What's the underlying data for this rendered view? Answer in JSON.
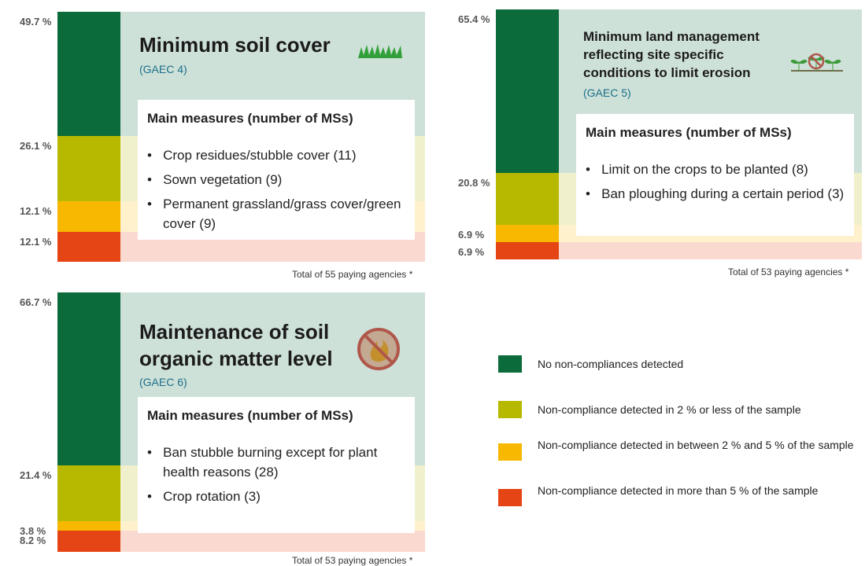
{
  "chart_data": [
    {
      "type": "stacked_bar",
      "title": "Minimum soil cover",
      "subtitle": "(GAEC 4)",
      "measures_title": "Main measures (number of MSs)",
      "measures": [
        "Crop residues/stubble cover (11)",
        "Sown vegetation (9)",
        "Permanent grassland/grass cover/green cover (9)"
      ],
      "values": [
        49.7,
        26.1,
        12.1,
        12.1
      ],
      "value_labels": [
        "49.7 %",
        "26.1 %",
        "12.1 %",
        "12.1 %"
      ],
      "ylim": [
        0,
        100
      ],
      "note": "Total of 55 paying agencies *"
    },
    {
      "type": "stacked_bar",
      "title": "Minimum land management reflecting site specific conditions to limit erosion",
      "subtitle": "(GAEC 5)",
      "measures_title": "Main measures (number of MSs)",
      "measures": [
        "Limit on the crops to be planted (8)",
        "Ban ploughing during a certain period (3)"
      ],
      "values": [
        65.4,
        20.8,
        6.9,
        6.9
      ],
      "value_labels": [
        "65.4 %",
        "20.8 %",
        "6.9 %",
        "6.9 %"
      ],
      "ylim": [
        0,
        100
      ],
      "note": "Total of 53 paying agencies *"
    },
    {
      "type": "stacked_bar",
      "title": "Maintenance of soil organic matter level",
      "subtitle": "(GAEC 6)",
      "measures_title": "Main measures (number of MSs)",
      "measures": [
        "Ban stubble burning except for plant health reasons (28)",
        "Crop rotation (3)"
      ],
      "values": [
        66.7,
        21.4,
        3.8,
        8.2
      ],
      "value_labels": [
        "66.7 %",
        "21.4 %",
        "3.8 %",
        "8.2 %"
      ],
      "ylim": [
        0,
        100
      ],
      "note": "Total of 53 paying agencies *"
    }
  ],
  "legend": [
    {
      "name": "No non-compliances detected",
      "color": "#0b6b3a"
    },
    {
      "name": "Non-compliance detected in 2 % or less of the sample",
      "color": "#b6b900"
    },
    {
      "name": "Non-compliance detected in between 2 % and 5 % of the sample",
      "color": "#f8b700"
    },
    {
      "name": "Non-compliance detected in more than 5 % of the sample",
      "color": "#e54414"
    }
  ]
}
